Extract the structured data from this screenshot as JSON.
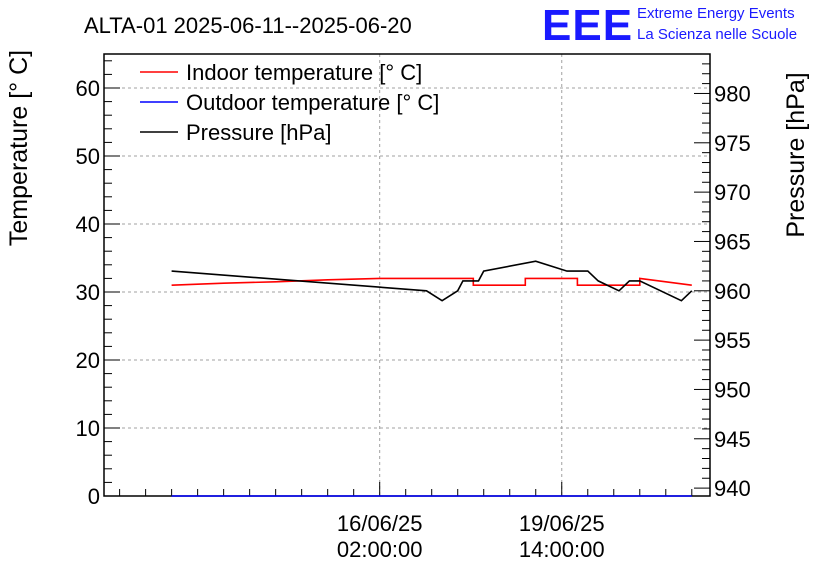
{
  "title": "ALTA-01 2025-06-11--2025-06-20",
  "logo": {
    "mark": "EEE",
    "line1": "Extreme Energy Events",
    "line2": "La Scienza nelle Scuole",
    "color": "#1a1aff"
  },
  "chart_data": {
    "type": "line",
    "title": "ALTA-01 2025-06-11--2025-06-20",
    "ylabel_left": "Temperature [° C]",
    "ylabel_right": "Pressure [hPa]",
    "xlabel": "",
    "x_tick_labels": [
      {
        "x": 2.0,
        "date": "16/06/25",
        "time": "02:00:00"
      },
      {
        "x": 5.5,
        "date": "19/06/25",
        "time": "14:00:00"
      }
    ],
    "xlim": [
      -3.3,
      8.35
    ],
    "ylim_left": [
      0,
      65
    ],
    "ylim_right": [
      939.2,
      984.0
    ],
    "left_ticks": [
      0,
      10,
      20,
      30,
      40,
      50,
      60
    ],
    "right_ticks": [
      940,
      945,
      950,
      955,
      960,
      965,
      970,
      975,
      980
    ],
    "grid": true,
    "legend": "top-left",
    "series": [
      {
        "name": "Indoor temperature [° C]",
        "color": "#ff0000",
        "axis": "left",
        "x": [
          -2.0,
          -1.0,
          0.0,
          1.0,
          2.0,
          2.5,
          3.0,
          3.8,
          3.8,
          4.8,
          4.8,
          5.5,
          5.8,
          5.8,
          7.0,
          7.0,
          8.0
        ],
        "y": [
          31.0,
          31.3,
          31.5,
          31.8,
          32.0,
          32.0,
          32.0,
          32.0,
          31.0,
          31.0,
          32.0,
          32.0,
          32.0,
          31.0,
          31.0,
          32.0,
          31.0
        ]
      },
      {
        "name": "Outdoor temperature [° C]",
        "color": "#0000ff",
        "axis": "left",
        "x": [
          -2.0,
          8.0
        ],
        "y": [
          0.0,
          0.0
        ]
      },
      {
        "name": "Pressure [hPa]",
        "color": "#000000",
        "axis": "right",
        "x": [
          -2.0,
          2.9,
          3.2,
          3.5,
          3.6,
          3.9,
          4.0,
          5.0,
          5.6,
          6.0,
          6.2,
          6.6,
          6.8,
          7.0,
          7.8,
          8.0
        ],
        "y": [
          962.0,
          960.0,
          959.0,
          960.0,
          961.0,
          961.0,
          962.0,
          963.0,
          962.0,
          962.0,
          961.0,
          960.0,
          961.0,
          961.0,
          959.0,
          960.0
        ]
      }
    ]
  }
}
